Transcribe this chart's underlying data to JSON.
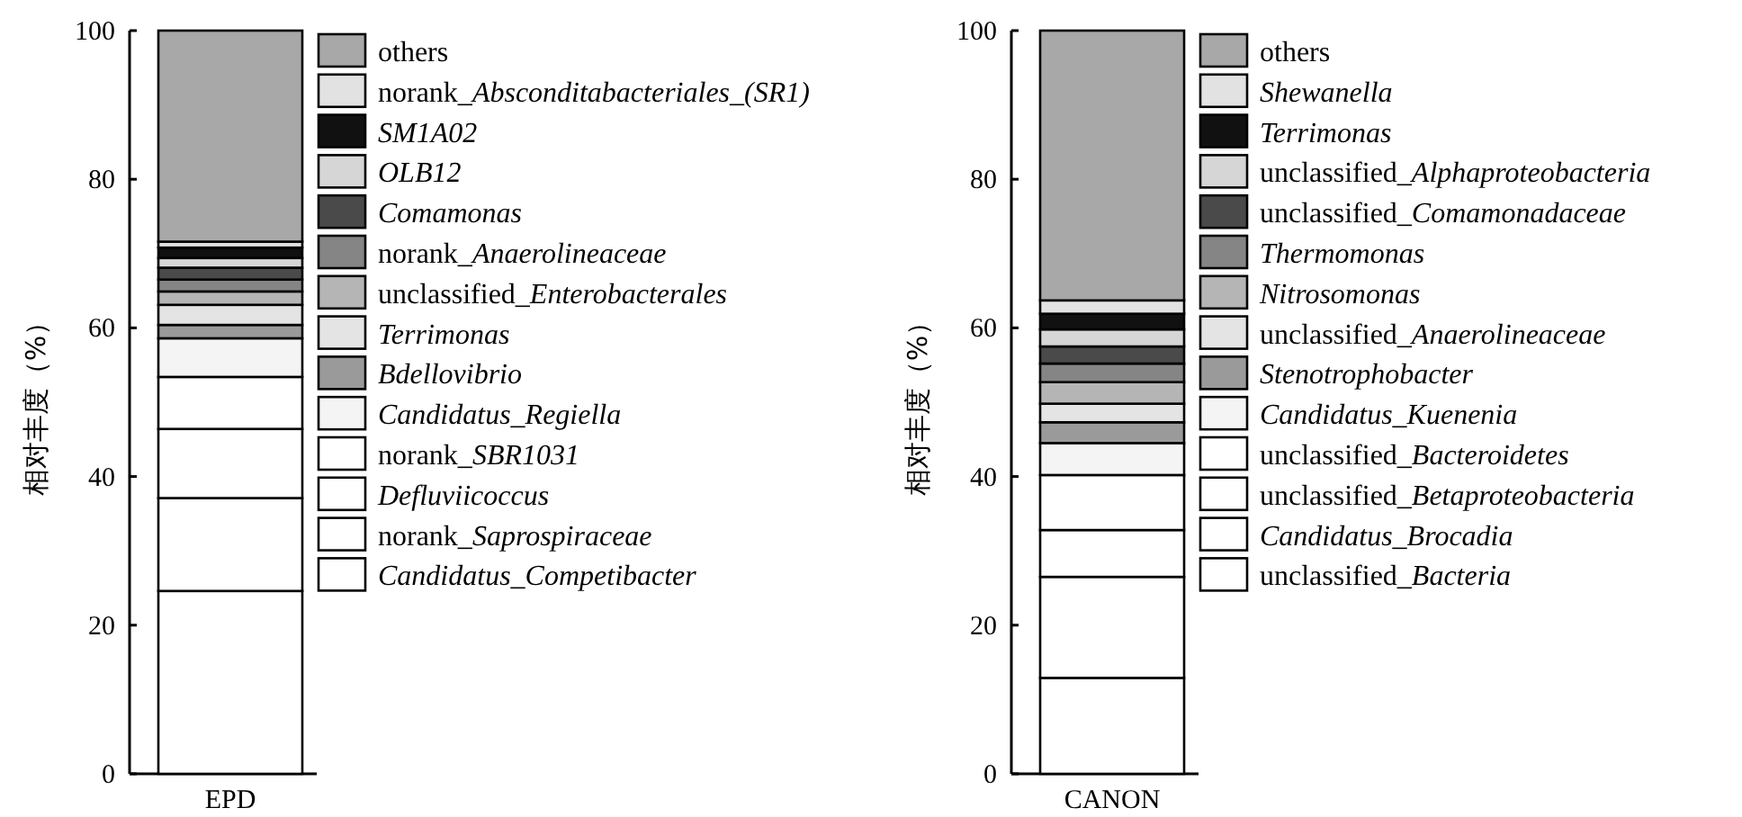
{
  "chart_data": [
    {
      "type": "bar",
      "stacked": true,
      "ylabel": "相对丰度（%）",
      "categories": [
        "EPD"
      ],
      "ylim": [
        0,
        100
      ],
      "yticks": [
        0,
        20,
        40,
        60,
        80,
        100
      ],
      "legend": "right",
      "series": [
        {
          "name": "Candidatus_Competibacter",
          "color": "#ffffff",
          "values": [
            24.6
          ]
        },
        {
          "name": "norank_Saprospiraceae",
          "color": "#ffffff",
          "values": [
            12.5
          ]
        },
        {
          "name": "Defluviicoccus",
          "color": "#ffffff",
          "values": [
            9.3
          ]
        },
        {
          "name": "norank_SBR1031",
          "color": "#ffffff",
          "values": [
            7
          ]
        },
        {
          "name": "Candidatus_Regiella",
          "color": "#f4f4f4",
          "values": [
            5.2
          ]
        },
        {
          "name": "Bdellovibrio",
          "color": "#9a9a9a",
          "values": [
            1.8
          ]
        },
        {
          "name": "Terrimonas",
          "color": "#e4e4e4",
          "values": [
            2.7
          ]
        },
        {
          "name": "unclassified_Enterobacterales",
          "color": "#b5b5b5",
          "values": [
            1.8
          ]
        },
        {
          "name": "norank_Anaerolineaceae",
          "color": "#858585",
          "values": [
            1.6
          ]
        },
        {
          "name": "Comamonas",
          "color": "#4a4a4a",
          "values": [
            1.6
          ]
        },
        {
          "name": "OLB12",
          "color": "#d6d6d6",
          "values": [
            1.3
          ]
        },
        {
          "name": "SM1A02",
          "color": "#111111",
          "values": [
            1.4
          ]
        },
        {
          "name": "norank_Absconditabacteriales_(SR1)",
          "color": "#e2e2e2",
          "values": [
            0.8
          ]
        },
        {
          "name": "others",
          "color": "#a8a8a8",
          "values": [
            28.4
          ]
        }
      ]
    },
    {
      "type": "bar",
      "stacked": true,
      "ylabel": "相对丰度（%）",
      "categories": [
        "CANON"
      ],
      "ylim": [
        0,
        100
      ],
      "yticks": [
        0,
        20,
        40,
        60,
        80,
        100
      ],
      "legend": "right",
      "series": [
        {
          "name": "unclassified_Bacteria",
          "color": "#ffffff",
          "values": [
            12.9
          ]
        },
        {
          "name": "Candidatus_Brocadia",
          "color": "#ffffff",
          "values": [
            13.6
          ]
        },
        {
          "name": "unclassified_Betaproteobacteria",
          "color": "#ffffff",
          "values": [
            6.3
          ]
        },
        {
          "name": "unclassified_Bacteroidetes",
          "color": "#ffffff",
          "values": [
            7.4
          ]
        },
        {
          "name": "Candidatus_Kuenenia",
          "color": "#f4f4f4",
          "values": [
            4.3
          ]
        },
        {
          "name": "Stenotrophobacter",
          "color": "#9a9a9a",
          "values": [
            2.8
          ]
        },
        {
          "name": "unclassified_Anaerolineaceae",
          "color": "#e4e4e4",
          "values": [
            2.5
          ]
        },
        {
          "name": "Nitrosomonas",
          "color": "#b5b5b5",
          "values": [
            2.9
          ]
        },
        {
          "name": "Thermomonas",
          "color": "#858585",
          "values": [
            2.5
          ]
        },
        {
          "name": "unclassified_Comamonadaceae",
          "color": "#4a4a4a",
          "values": [
            2.3
          ]
        },
        {
          "name": "unclassified_Alphaproteobacteria",
          "color": "#d6d6d6",
          "values": [
            2.3
          ]
        },
        {
          "name": "Terrimonas",
          "color": "#111111",
          "values": [
            2.1
          ]
        },
        {
          "name": "Shewanella",
          "color": "#e2e2e2",
          "values": [
            1.8
          ]
        },
        {
          "name": "others",
          "color": "#a8a8a8",
          "values": [
            36.3
          ]
        }
      ]
    }
  ]
}
